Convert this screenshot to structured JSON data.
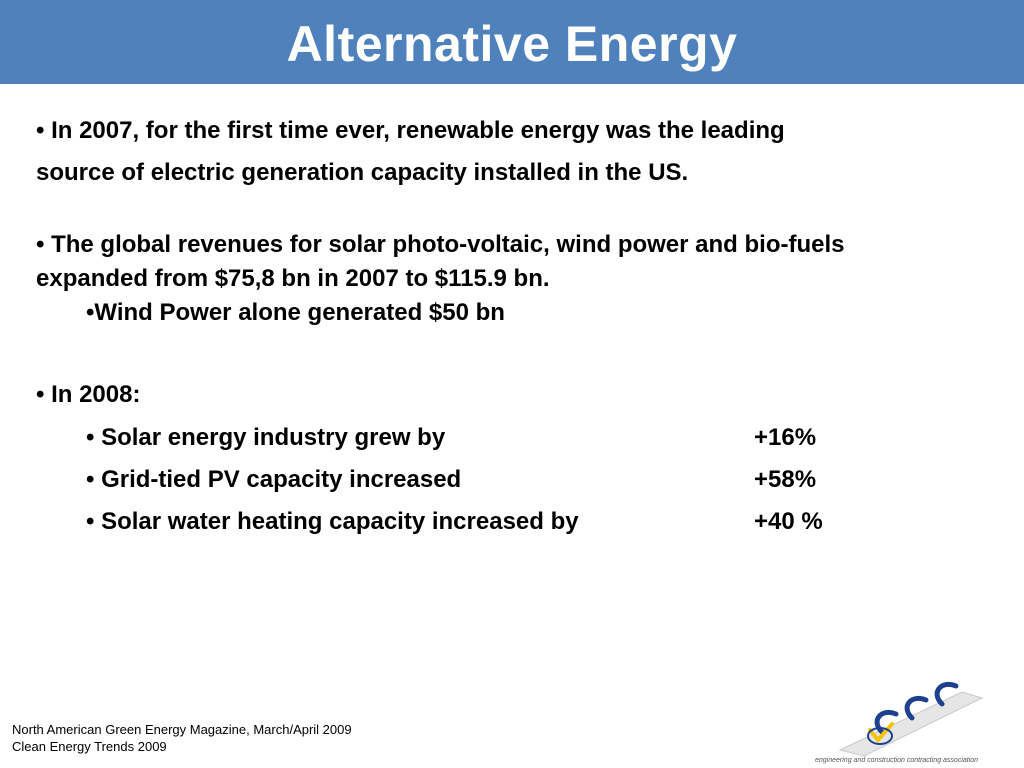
{
  "slide": {
    "title": "Alternative Energy",
    "bullets": {
      "b1_line1": "• In 2007, for the first time ever, renewable energy was the leading",
      "b1_line2": "source of electric generation capacity installed in the US.",
      "b2_line1": "• The global revenues for solar photo-voltaic, wind power and bio-fuels",
      "b2_line2": "expanded from $75,8 bn in 2007 to $115.9 bn.",
      "b2_sub": "•Wind Power alone generated $50 bn",
      "b3": "• In 2008:"
    },
    "stats": [
      {
        "label": "• Solar energy industry grew by",
        "value": "+16%"
      },
      {
        "label": "• Grid-tied PV capacity increased",
        "value": "+58%"
      },
      {
        "label": "• Solar water heating capacity increased by",
        "value": "+40 %"
      }
    ]
  },
  "footer": {
    "source1": "North American Green Energy Magazine, March/April 2009",
    "source2": "Clean Energy Trends 2009"
  },
  "logo": {
    "icon": "ecca-logo",
    "text": "engineering and construction contracting association"
  },
  "colors": {
    "title_bar": "#4f81bd",
    "title_text": "#ffffff"
  }
}
